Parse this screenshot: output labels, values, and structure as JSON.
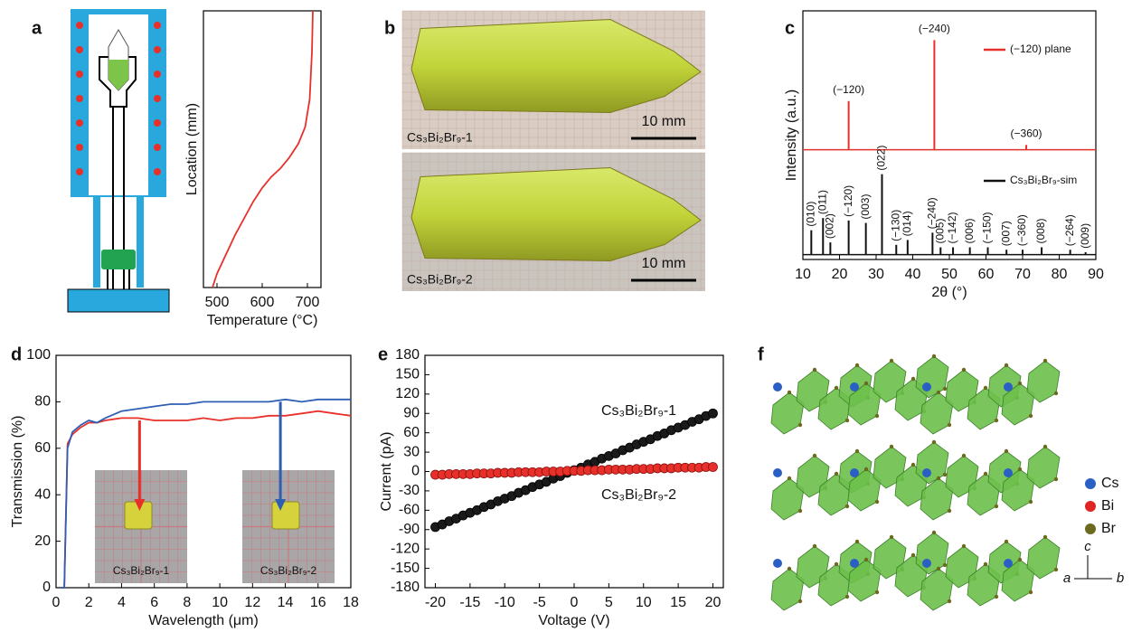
{
  "chart_data": [
    {
      "panel": "a",
      "type": "line",
      "xlabel": "Temperature (°C)",
      "ylabel": "Location (mm)",
      "xlim": [
        470,
        730
      ],
      "xticks": [
        500,
        600,
        700
      ],
      "ylim": [
        0,
        100
      ],
      "series": [
        {
          "color": "#e8302a",
          "x": [
            490,
            500,
            520,
            540,
            560,
            580,
            600,
            620,
            640,
            660,
            680,
            695,
            705,
            710,
            712
          ],
          "values": [
            0,
            5,
            12,
            19,
            25,
            31,
            36,
            40,
            43,
            47,
            52,
            58,
            68,
            85,
            100
          ]
        }
      ]
    },
    {
      "panel": "b",
      "type": "photo",
      "images": [
        {
          "label": "Cs₃Bi₂Br₉-1",
          "scale": "10 mm"
        },
        {
          "label": "Cs₃Bi₂Br₉-2",
          "scale": "10 mm"
        }
      ]
    },
    {
      "panel": "c",
      "type": "stem",
      "xlabel": "2θ (°)",
      "ylabel": "Intensity (a.u.)",
      "xlim": [
        10,
        90
      ],
      "xticks": [
        10,
        20,
        30,
        40,
        50,
        60,
        70,
        80,
        90
      ],
      "ylim": [
        -2,
        100
      ],
      "series": [
        {
          "name": "(−120) plane",
          "color": "#e8302a",
          "baseline": 43,
          "x": [
            22.5,
            45.9,
            71
          ],
          "values": [
            63,
            88,
            45
          ],
          "labels": [
            "(−120)",
            "(−240)",
            "(−360)"
          ]
        },
        {
          "name": "Cs₃Bi₂Br₉-sim",
          "color": "#111111",
          "baseline": 0,
          "x": [
            12.3,
            15.5,
            17.5,
            22.5,
            27.2,
            31.6,
            35.5,
            38.6,
            45.4,
            47.6,
            51,
            55.6,
            60.5,
            65.6,
            70,
            75.2,
            83,
            87.2
          ],
          "values": [
            10,
            15,
            5,
            14,
            13,
            33,
            4,
            6,
            9,
            3,
            3,
            3,
            3,
            2,
            2,
            3,
            2,
            1
          ],
          "labels": [
            "(010)",
            "(011)",
            "(002)",
            "(−120)",
            "(003)",
            "(022)",
            "(−130)",
            "(014)",
            "(−240)",
            "(005)",
            "(−142)",
            "(006)",
            "(−150)",
            "(007)",
            "(−360)",
            "(008)",
            "(−264)",
            "(009)"
          ]
        }
      ]
    },
    {
      "panel": "d",
      "type": "line",
      "xlabel": "Wavelength (μm)",
      "ylabel": "Transmission (%)",
      "xlim": [
        0,
        18
      ],
      "xticks": [
        0,
        2,
        4,
        6,
        8,
        10,
        12,
        14,
        16,
        18
      ],
      "ylim": [
        0,
        100
      ],
      "yticks": [
        0,
        20,
        40,
        60,
        80,
        100
      ],
      "insets": [
        "Cs₃Bi₂Br₉-1",
        "Cs₃Bi₂Br₉-2"
      ],
      "series": [
        {
          "color": "#e8302a",
          "x": [
            0.3,
            0.5,
            0.7,
            1,
            1.5,
            2,
            2.5,
            3,
            4,
            5,
            6,
            7,
            8,
            9,
            10,
            11,
            12,
            13,
            14,
            15,
            16,
            17,
            18
          ],
          "values": [
            0,
            0,
            62,
            66,
            69,
            71,
            71,
            72,
            73,
            73,
            72,
            72,
            72,
            73,
            72,
            73,
            73,
            74,
            74,
            75,
            76,
            75,
            74
          ]
        },
        {
          "color": "#2f5fb3",
          "x": [
            0.3,
            0.5,
            0.7,
            1,
            1.5,
            2,
            2.5,
            3,
            4,
            5,
            6,
            7,
            8,
            9,
            10,
            11,
            12,
            13,
            14,
            15,
            16,
            17,
            18
          ],
          "values": [
            0,
            0,
            60,
            67,
            70,
            72,
            71,
            73,
            76,
            77,
            78,
            79,
            79,
            80,
            80,
            80,
            80,
            80,
            81,
            80,
            81,
            81,
            81
          ]
        }
      ]
    },
    {
      "panel": "e",
      "type": "scatter",
      "xlabel": "Voltage (V)",
      "ylabel": "Current (pA)",
      "xlim": [
        -21.5,
        21.5
      ],
      "xticks": [
        -20,
        -15,
        -10,
        -5,
        0,
        5,
        10,
        15,
        20
      ],
      "ylim": [
        -180,
        180
      ],
      "yticks": [
        -180,
        -150,
        -120,
        -90,
        -60,
        -30,
        0,
        30,
        60,
        90,
        120,
        150,
        180
      ],
      "x": [
        -20,
        -19,
        -18,
        -17,
        -16,
        -15,
        -14,
        -13,
        -12,
        -11,
        -10,
        -9,
        -8,
        -7,
        -6,
        -5,
        -4,
        -3,
        -2,
        -1,
        0,
        1,
        2,
        3,
        4,
        5,
        6,
        7,
        8,
        9,
        10,
        11,
        12,
        13,
        14,
        15,
        16,
        17,
        18,
        19,
        20
      ],
      "series": [
        {
          "name": "Cs₃Bi₂Br₉-1",
          "color": "#1a1a1a",
          "values": [
            -86,
            -82,
            -77,
            -73,
            -68,
            -64,
            -60,
            -55,
            -51,
            -46,
            -42,
            -38,
            -33,
            -29,
            -24,
            -20,
            -16,
            -11,
            -7,
            -2,
            2,
            6,
            11,
            15,
            20,
            24,
            28,
            33,
            37,
            42,
            46,
            50,
            55,
            59,
            64,
            68,
            72,
            77,
            81,
            86,
            90
          ]
        },
        {
          "name": "Cs₃Bi₂Br₉-2",
          "color": "#e8302a",
          "values": [
            -5,
            -5,
            -4,
            -4,
            -4,
            -4,
            -3,
            -3,
            -3,
            -2,
            -2,
            -2,
            -1,
            -1,
            -1,
            -1,
            0,
            0,
            0,
            1,
            1,
            1,
            2,
            2,
            2,
            3,
            3,
            3,
            3,
            4,
            4,
            4,
            5,
            5,
            5,
            6,
            6,
            6,
            6,
            7,
            7
          ]
        }
      ]
    },
    {
      "panel": "f",
      "type": "structure",
      "legend": [
        {
          "name": "Cs",
          "color": "#2a5fc4"
        },
        {
          "name": "Bi",
          "color": "#e02525"
        },
        {
          "name": "Br",
          "color": "#6b6a1e"
        }
      ],
      "axes": [
        "c",
        "a",
        "b"
      ]
    }
  ]
}
